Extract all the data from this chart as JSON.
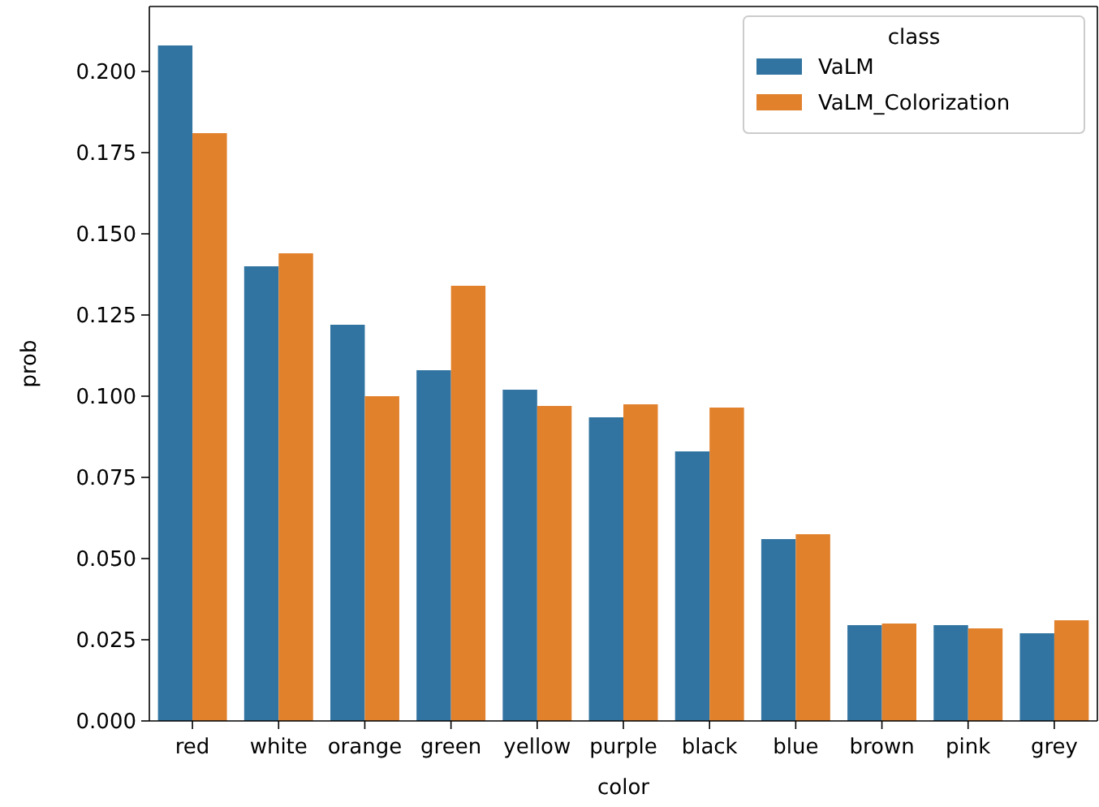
{
  "chart_data": {
    "type": "bar",
    "xlabel": "color",
    "ylabel": "prob",
    "legend_title": "class",
    "legend": "top right",
    "grid": false,
    "categories": [
      "red",
      "white",
      "orange",
      "green",
      "yellow",
      "purple",
      "black",
      "blue",
      "brown",
      "pink",
      "grey"
    ],
    "series": [
      {
        "name": "VaLM",
        "color": "#3274a1",
        "values": [
          0.208,
          0.14,
          0.122,
          0.108,
          0.102,
          0.0935,
          0.083,
          0.056,
          0.0295,
          0.0295,
          0.027
        ]
      },
      {
        "name": "VaLM_Colorization",
        "color": "#e1812c",
        "values": [
          0.181,
          0.144,
          0.1,
          0.134,
          0.097,
          0.0975,
          0.0965,
          0.0575,
          0.03,
          0.0285,
          0.031
        ]
      }
    ],
    "ylim": [
      0,
      0.22
    ],
    "yticks": [
      {
        "value": 0,
        "label": "0.000"
      },
      {
        "value": 0.025,
        "label": "0.025"
      },
      {
        "value": 0.05,
        "label": "0.050"
      },
      {
        "value": 0.075,
        "label": "0.075"
      },
      {
        "value": 0.1,
        "label": "0.100"
      },
      {
        "value": 0.125,
        "label": "0.125"
      },
      {
        "value": 0.15,
        "label": "0.150"
      },
      {
        "value": 0.175,
        "label": "0.175"
      },
      {
        "value": 0.2,
        "label": "0.200"
      }
    ]
  }
}
